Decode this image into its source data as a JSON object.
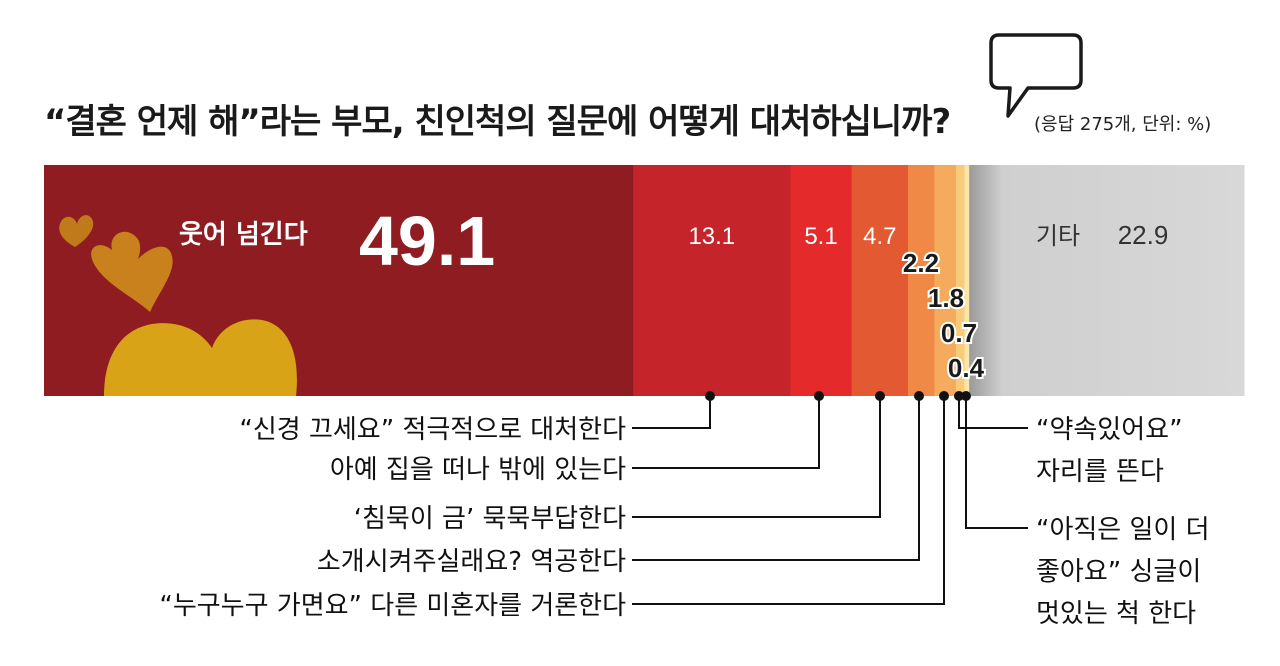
{
  "title": "“결혼 언제 해”라는 부모, 친인척의 질문에 어떻게 대처하십니까?",
  "unit_note": "(응답 275개, 단위: %)",
  "chart_data": {
    "type": "bar",
    "orientation": "horizontal",
    "stacked": true,
    "total": 100,
    "segments": [
      {
        "label": "웃어 넘긴다",
        "value": 49.1,
        "color": "#8f1c21",
        "value_text": "49.1"
      },
      {
        "label": "“신경 끄세요” 적극적으로 대처한다",
        "value": 13.1,
        "color": "#c5242b",
        "value_text": "13.1"
      },
      {
        "label": "아예 집을 떠나 밖에 있는다",
        "value": 5.1,
        "color": "#e42a2a",
        "value_text": "5.1"
      },
      {
        "label": "‘침묵이 금’ 묵묵부답한다",
        "value": 4.7,
        "color": "#e35a32",
        "value_text": "4.7"
      },
      {
        "label": "소개시켜주실래요? 역공한다",
        "value": 2.2,
        "color": "#ef8945",
        "value_text": "2.2"
      },
      {
        "label": "“누구누구 가면요” 다른 미혼자를 거론한다",
        "value": 1.8,
        "color": "#f4ab5d",
        "value_text": "1.8"
      },
      {
        "label": "“약속있어요” 자리를 뜬다",
        "value": 0.7,
        "color": "#f7cb7a",
        "value_text": "0.7"
      },
      {
        "label": "“아직은 일이 더 좋아요” 싱글이 멋있는 척 한다",
        "value": 0.4,
        "color": "#fbe5a8",
        "value_text": "0.4"
      },
      {
        "label": "기타",
        "value": 22.9,
        "color": "#d6d6d6",
        "value_text": "22.9"
      }
    ],
    "callouts_left": [
      "“신경 끄세요” 적극적으로 대처한다",
      "아예 집을 떠나 밖에 있는다",
      "‘침묵이 금’ 묵묵부답한다",
      "소개시켜주실래요? 역공한다",
      "“누구누구 가면요” 다른 미혼자를 거론한다"
    ],
    "callouts_right": [
      [
        "“약속있어요”",
        "자리를 뜬다"
      ],
      [
        "“아직은 일이 더",
        "좋아요” 싱글이",
        "멋있는 척 한다"
      ]
    ]
  }
}
